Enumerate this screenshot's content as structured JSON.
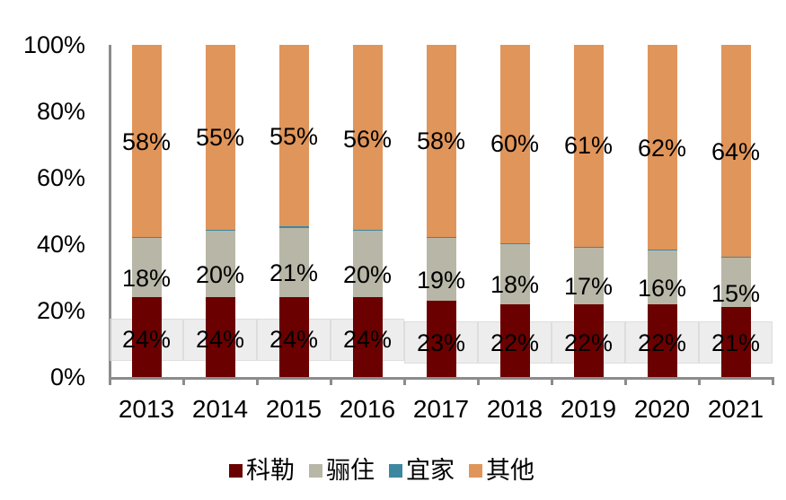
{
  "chart_data": {
    "type": "bar",
    "stacked": true,
    "percent": true,
    "title": "",
    "xlabel": "",
    "ylabel": "",
    "ylim": [
      0,
      100
    ],
    "yticks": [
      "0%",
      "20%",
      "40%",
      "60%",
      "80%",
      "100%"
    ],
    "categories": [
      "2013",
      "2014",
      "2015",
      "2016",
      "2017",
      "2018",
      "2019",
      "2020",
      "2021"
    ],
    "series": [
      {
        "name": "科勒",
        "color": "#6b0000",
        "values": [
          24,
          24,
          24,
          24,
          23,
          22,
          22,
          22,
          21
        ]
      },
      {
        "name": "骊住",
        "color": "#b8b6a6",
        "values": [
          18,
          20,
          21,
          20,
          19,
          18,
          17,
          16,
          15
        ]
      },
      {
        "name": "宜家",
        "color": "#3d88a0",
        "values": [
          0.3,
          0.3,
          0.3,
          0.3,
          0.3,
          0.3,
          0.3,
          0.3,
          0.3
        ]
      },
      {
        "name": "其他",
        "color": "#e0955a",
        "values": [
          58,
          55,
          55,
          56,
          58,
          60,
          61,
          62,
          64
        ]
      }
    ],
    "data_labels": {
      "科勒": [
        "24%",
        "24%",
        "24%",
        "24%",
        "23%",
        "22%",
        "22%",
        "22%",
        "21%"
      ],
      "骊住": [
        "18%",
        "20%",
        "21%",
        "20%",
        "19%",
        "18%",
        "17%",
        "16%",
        "15%"
      ],
      "其他": [
        "58%",
        "55%",
        "55%",
        "56%",
        "58%",
        "60%",
        "61%",
        "62%",
        "64%"
      ]
    },
    "legend": {
      "position": "bottom",
      "entries": [
        "科勒",
        "骊住",
        "宜家",
        "其他"
      ]
    },
    "grid": false
  }
}
